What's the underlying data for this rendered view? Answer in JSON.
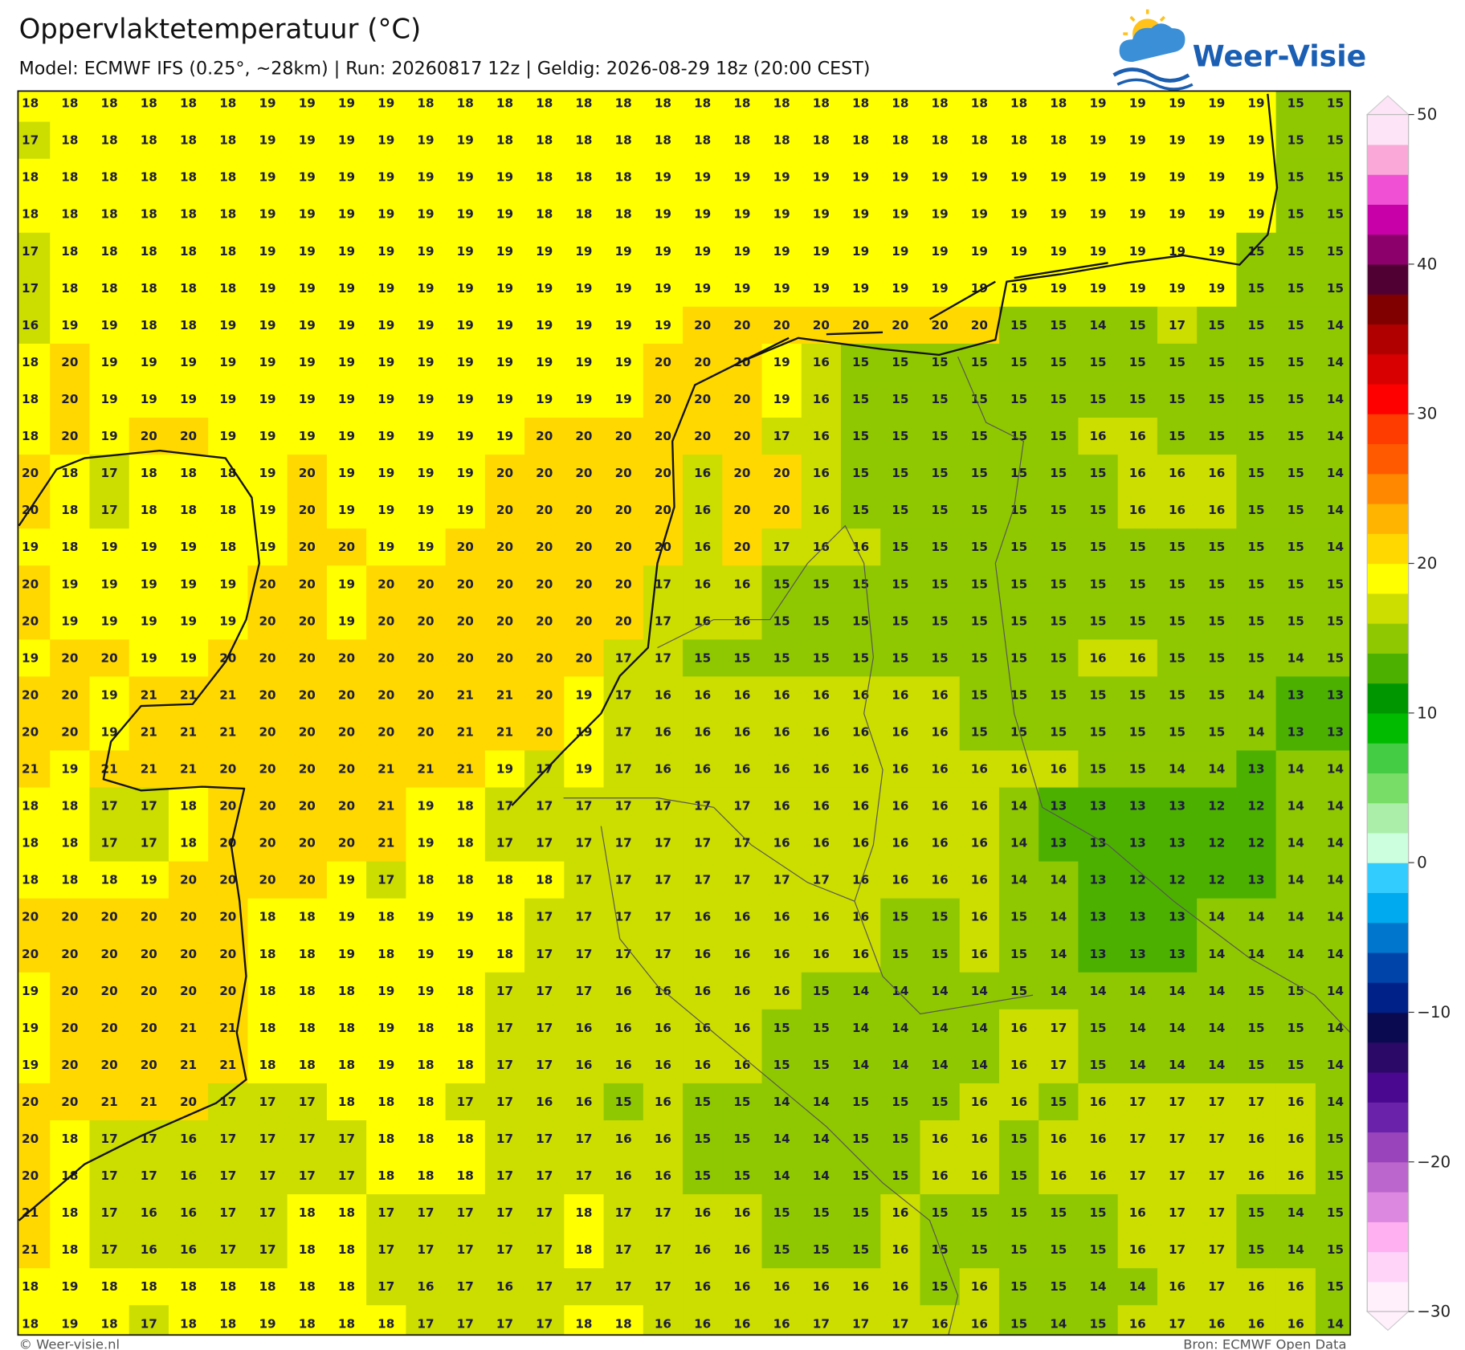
{
  "header": {
    "title": "Oppervlaktetemperatuur (°C)",
    "subtitle": "Model: ECMWF IFS (0.25°, ~28km)  |  Run: 20260817 12z  |  Geldig: 2026-08-29 18z (20:00 CEST)",
    "logo": "Weer-Visie"
  },
  "map": {
    "grid": [
      [
        18,
        18,
        18,
        18,
        18,
        18,
        19,
        19,
        19,
        19,
        18,
        18,
        18,
        18,
        18,
        18,
        18,
        18,
        18,
        18,
        18,
        18,
        18,
        18,
        18,
        18,
        18,
        19,
        19,
        19,
        19,
        19,
        15,
        15
      ],
      [
        17,
        18,
        18,
        18,
        18,
        18,
        19,
        19,
        19,
        19,
        19,
        19,
        18,
        18,
        18,
        18,
        18,
        18,
        18,
        18,
        18,
        18,
        18,
        18,
        18,
        18,
        18,
        19,
        19,
        19,
        19,
        19,
        15,
        15
      ],
      [
        18,
        18,
        18,
        18,
        18,
        18,
        19,
        19,
        19,
        19,
        19,
        19,
        19,
        18,
        18,
        18,
        19,
        19,
        19,
        19,
        19,
        19,
        19,
        19,
        19,
        19,
        19,
        19,
        19,
        19,
        19,
        19,
        15,
        15
      ],
      [
        18,
        18,
        18,
        18,
        18,
        18,
        19,
        19,
        19,
        19,
        19,
        19,
        19,
        18,
        18,
        18,
        19,
        19,
        19,
        19,
        19,
        19,
        19,
        19,
        19,
        19,
        19,
        19,
        19,
        19,
        19,
        19,
        15,
        15
      ],
      [
        17,
        18,
        18,
        18,
        18,
        18,
        19,
        19,
        19,
        19,
        19,
        19,
        19,
        19,
        19,
        19,
        19,
        19,
        19,
        19,
        19,
        19,
        19,
        19,
        19,
        19,
        19,
        19,
        19,
        19,
        19,
        15,
        15,
        15
      ],
      [
        17,
        18,
        18,
        18,
        18,
        18,
        19,
        19,
        19,
        19,
        19,
        19,
        19,
        19,
        19,
        19,
        19,
        19,
        19,
        19,
        19,
        19,
        19,
        19,
        19,
        19,
        19,
        19,
        19,
        19,
        19,
        15,
        15,
        15
      ],
      [
        16,
        19,
        19,
        18,
        18,
        19,
        19,
        19,
        19,
        19,
        19,
        19,
        19,
        19,
        19,
        19,
        19,
        20,
        20,
        20,
        20,
        20,
        20,
        20,
        20,
        15,
        15,
        14,
        15,
        17,
        15,
        15,
        15,
        14
      ],
      [
        18,
        20,
        19,
        19,
        19,
        19,
        19,
        19,
        19,
        19,
        19,
        19,
        19,
        19,
        19,
        19,
        20,
        20,
        20,
        19,
        16,
        15,
        15,
        15,
        15,
        15,
        15,
        15,
        15,
        15,
        15,
        15,
        15,
        14
      ],
      [
        18,
        20,
        19,
        19,
        19,
        19,
        19,
        19,
        19,
        19,
        19,
        19,
        19,
        19,
        19,
        19,
        20,
        20,
        20,
        19,
        16,
        15,
        15,
        15,
        15,
        15,
        15,
        15,
        15,
        15,
        15,
        15,
        15,
        14
      ],
      [
        18,
        20,
        19,
        20,
        20,
        19,
        19,
        19,
        19,
        19,
        19,
        19,
        19,
        20,
        20,
        20,
        20,
        20,
        20,
        17,
        16,
        15,
        15,
        15,
        15,
        15,
        15,
        16,
        16,
        15,
        15,
        15,
        15,
        14
      ],
      [
        20,
        18,
        17,
        18,
        18,
        18,
        19,
        20,
        19,
        19,
        19,
        19,
        20,
        20,
        20,
        20,
        20,
        16,
        20,
        20,
        16,
        15,
        15,
        15,
        15,
        15,
        15,
        15,
        16,
        16,
        16,
        15,
        15,
        14
      ],
      [
        20,
        18,
        17,
        18,
        18,
        18,
        19,
        20,
        19,
        19,
        19,
        19,
        20,
        20,
        20,
        20,
        20,
        16,
        20,
        20,
        16,
        15,
        15,
        15,
        15,
        15,
        15,
        15,
        16,
        16,
        16,
        15,
        15,
        14
      ],
      [
        19,
        18,
        19,
        19,
        19,
        18,
        19,
        20,
        20,
        19,
        19,
        20,
        20,
        20,
        20,
        20,
        20,
        16,
        20,
        17,
        16,
        16,
        15,
        15,
        15,
        15,
        15,
        15,
        15,
        15,
        15,
        15,
        15,
        14
      ],
      [
        20,
        19,
        19,
        19,
        19,
        19,
        20,
        20,
        19,
        20,
        20,
        20,
        20,
        20,
        20,
        20,
        17,
        16,
        16,
        15,
        15,
        15,
        15,
        15,
        15,
        15,
        15,
        15,
        15,
        15,
        15,
        15,
        15,
        15
      ],
      [
        20,
        19,
        19,
        19,
        19,
        19,
        20,
        20,
        19,
        20,
        20,
        20,
        20,
        20,
        20,
        20,
        17,
        16,
        16,
        15,
        15,
        15,
        15,
        15,
        15,
        15,
        15,
        15,
        15,
        15,
        15,
        15,
        15,
        15
      ],
      [
        19,
        20,
        20,
        19,
        19,
        20,
        20,
        20,
        20,
        20,
        20,
        20,
        20,
        20,
        20,
        17,
        17,
        15,
        15,
        15,
        15,
        15,
        15,
        15,
        15,
        15,
        15,
        16,
        16,
        15,
        15,
        15,
        14,
        15
      ],
      [
        20,
        20,
        19,
        21,
        21,
        21,
        20,
        20,
        20,
        20,
        20,
        21,
        21,
        20,
        19,
        17,
        16,
        16,
        16,
        16,
        16,
        16,
        16,
        16,
        15,
        15,
        15,
        15,
        15,
        15,
        15,
        14,
        13,
        13
      ],
      [
        20,
        20,
        19,
        21,
        21,
        21,
        20,
        20,
        20,
        20,
        20,
        21,
        21,
        20,
        19,
        17,
        16,
        16,
        16,
        16,
        16,
        16,
        16,
        16,
        15,
        15,
        15,
        15,
        15,
        15,
        15,
        14,
        13,
        13
      ],
      [
        21,
        19,
        21,
        21,
        21,
        20,
        20,
        20,
        20,
        21,
        21,
        21,
        19,
        17,
        19,
        17,
        16,
        16,
        16,
        16,
        16,
        16,
        16,
        16,
        16,
        16,
        16,
        15,
        15,
        14,
        14,
        13,
        14,
        14
      ],
      [
        18,
        18,
        17,
        17,
        18,
        20,
        20,
        20,
        20,
        21,
        19,
        18,
        17,
        17,
        17,
        17,
        17,
        17,
        17,
        16,
        16,
        16,
        16,
        16,
        16,
        14,
        13,
        13,
        13,
        13,
        12,
        12,
        14,
        14
      ],
      [
        18,
        18,
        17,
        17,
        18,
        20,
        20,
        20,
        20,
        21,
        19,
        18,
        17,
        17,
        17,
        17,
        17,
        17,
        17,
        16,
        16,
        16,
        16,
        16,
        16,
        14,
        13,
        13,
        13,
        13,
        12,
        12,
        14,
        14
      ],
      [
        18,
        18,
        18,
        19,
        20,
        20,
        20,
        20,
        19,
        17,
        18,
        18,
        18,
        18,
        17,
        17,
        17,
        17,
        17,
        17,
        17,
        16,
        16,
        16,
        16,
        14,
        14,
        13,
        12,
        12,
        12,
        13,
        14,
        14
      ],
      [
        20,
        20,
        20,
        20,
        20,
        20,
        18,
        18,
        19,
        18,
        19,
        19,
        18,
        17,
        17,
        17,
        17,
        16,
        16,
        16,
        16,
        16,
        15,
        15,
        16,
        15,
        14,
        13,
        13,
        13,
        14,
        14,
        14,
        14
      ],
      [
        20,
        20,
        20,
        20,
        20,
        20,
        18,
        18,
        19,
        18,
        19,
        19,
        18,
        17,
        17,
        17,
        17,
        16,
        16,
        16,
        16,
        16,
        15,
        15,
        16,
        15,
        14,
        13,
        13,
        13,
        14,
        14,
        14,
        14
      ],
      [
        19,
        20,
        20,
        20,
        20,
        20,
        18,
        18,
        18,
        19,
        19,
        18,
        17,
        17,
        17,
        16,
        16,
        16,
        16,
        16,
        15,
        14,
        14,
        14,
        14,
        15,
        14,
        14,
        14,
        14,
        14,
        15,
        15,
        14
      ],
      [
        19,
        20,
        20,
        20,
        21,
        21,
        18,
        18,
        18,
        19,
        18,
        18,
        17,
        17,
        16,
        16,
        16,
        16,
        16,
        15,
        15,
        14,
        14,
        14,
        14,
        16,
        17,
        15,
        14,
        14,
        14,
        15,
        15,
        14
      ],
      [
        19,
        20,
        20,
        20,
        21,
        21,
        18,
        18,
        18,
        19,
        18,
        18,
        17,
        17,
        16,
        16,
        16,
        16,
        16,
        15,
        15,
        14,
        14,
        14,
        14,
        16,
        17,
        15,
        14,
        14,
        14,
        15,
        15,
        14
      ],
      [
        20,
        20,
        21,
        21,
        20,
        17,
        17,
        17,
        18,
        18,
        18,
        17,
        17,
        16,
        16,
        15,
        16,
        15,
        15,
        14,
        14,
        15,
        15,
        15,
        16,
        16,
        15,
        16,
        17,
        17,
        17,
        17,
        16,
        14
      ],
      [
        20,
        18,
        17,
        17,
        16,
        17,
        17,
        17,
        17,
        18,
        18,
        18,
        17,
        17,
        17,
        16,
        16,
        15,
        15,
        14,
        14,
        15,
        15,
        16,
        16,
        15,
        16,
        16,
        17,
        17,
        17,
        16,
        16,
        15
      ],
      [
        20,
        18,
        17,
        17,
        16,
        17,
        17,
        17,
        17,
        18,
        18,
        18,
        17,
        17,
        17,
        16,
        16,
        15,
        15,
        14,
        14,
        15,
        15,
        16,
        16,
        15,
        16,
        16,
        17,
        17,
        17,
        16,
        16,
        15
      ],
      [
        21,
        18,
        17,
        16,
        16,
        17,
        17,
        18,
        18,
        17,
        17,
        17,
        17,
        17,
        18,
        17,
        17,
        16,
        16,
        15,
        15,
        15,
        16,
        15,
        15,
        15,
        15,
        15,
        16,
        17,
        17,
        15,
        14,
        15
      ],
      [
        21,
        18,
        17,
        16,
        16,
        17,
        17,
        18,
        18,
        17,
        17,
        17,
        17,
        17,
        18,
        17,
        17,
        16,
        16,
        15,
        15,
        15,
        16,
        15,
        15,
        15,
        15,
        15,
        16,
        17,
        17,
        15,
        14,
        15
      ],
      [
        18,
        19,
        18,
        18,
        18,
        18,
        18,
        18,
        18,
        17,
        16,
        17,
        16,
        17,
        17,
        17,
        17,
        16,
        16,
        16,
        16,
        16,
        16,
        15,
        16,
        15,
        15,
        14,
        14,
        16,
        17,
        16,
        16,
        15
      ],
      [
        18,
        19,
        18,
        17,
        18,
        18,
        19,
        18,
        18,
        18,
        17,
        17,
        17,
        17,
        18,
        18,
        16,
        16,
        16,
        16,
        17,
        17,
        17,
        16,
        16,
        15,
        14,
        15,
        16,
        17,
        16,
        16,
        16,
        14
      ]
    ]
  },
  "colorbar": {
    "lim": [
      -30,
      50
    ],
    "ticks": [
      50,
      40,
      30,
      20,
      10,
      0,
      {
        "value": -10,
        "label": "−10"
      },
      {
        "value": -20,
        "label": "−20"
      },
      {
        "value": -30,
        "label": "−30"
      }
    ],
    "colors": [
      "#fff0fc",
      "#ffd4f8",
      "#ffb0f0",
      "#dd88e0",
      "#bb66cc",
      "#9944bb",
      "#6a22aa",
      "#4a0890",
      "#2a0a66",
      "#0a0a50",
      "#002288",
      "#0044aa",
      "#0077cc",
      "#00aaee",
      "#33ccff",
      "#ccffdd",
      "#aaeeaa",
      "#77dd66",
      "#44cc44",
      "#00bb00",
      "#009600",
      "#4cb000",
      "#8fc800",
      "#ccdd00",
      "#ffff00",
      "#ffd800",
      "#ffb400",
      "#ff8800",
      "#ff5a00",
      "#ff3c00",
      "#ff0000",
      "#d80000",
      "#b00000",
      "#800000",
      "#500033",
      "#8c006c",
      "#c800a8",
      "#f050d4",
      "#f9a8d8",
      "#fde4f6"
    ]
  },
  "footer": {
    "left": "© Weer-visie.nl",
    "right": "Bron: ECMWF Open Data"
  }
}
